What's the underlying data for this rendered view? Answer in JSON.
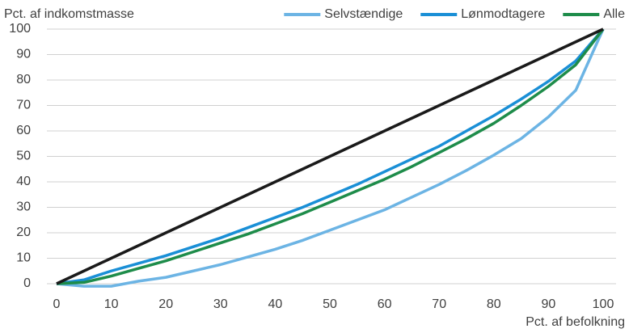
{
  "chart_data": {
    "type": "line",
    "y_label": "Pct. af indkomstmasse",
    "x_label": "Pct. af befolkning",
    "x": [
      0,
      5,
      10,
      15,
      20,
      25,
      30,
      35,
      40,
      45,
      50,
      55,
      60,
      65,
      70,
      75,
      80,
      85,
      90,
      95,
      100
    ],
    "series": [
      {
        "name": "Selvstændige",
        "color": "#6cb4e4",
        "values": [
          0,
          -1,
          -1,
          1,
          2.5,
          5,
          7.5,
          10.5,
          13.5,
          17,
          21,
          25,
          29,
          34,
          39,
          44.5,
          50.5,
          57,
          65.5,
          76,
          100
        ]
      },
      {
        "name": "Lønmodtagere",
        "color": "#1a8fd6",
        "values": [
          0,
          1.5,
          5,
          8,
          11,
          14.5,
          18,
          22,
          26,
          30,
          34.5,
          39,
          44,
          49,
          54,
          60,
          66,
          72.5,
          79.5,
          87.5,
          100
        ]
      },
      {
        "name": "Alle",
        "color": "#1e8c4a",
        "values": [
          0,
          0.5,
          3,
          6,
          9,
          12.5,
          16,
          19.5,
          23.5,
          27.5,
          32,
          36.5,
          41,
          46,
          51.5,
          57,
          63,
          70,
          77.5,
          86,
          100
        ]
      },
      {
        "color": "#1a1a1a",
        "values": [
          0,
          5,
          10,
          15,
          20,
          25,
          30,
          35,
          40,
          45,
          50,
          55,
          60,
          65,
          70,
          75,
          80,
          85,
          90,
          95,
          100
        ]
      }
    ],
    "xlim": [
      0,
      100
    ],
    "xticks": [
      0,
      10,
      20,
      30,
      40,
      50,
      60,
      70,
      80,
      90,
      100
    ],
    "ylim": [
      0,
      100
    ],
    "yticks": [
      0,
      10,
      20,
      30,
      40,
      50,
      60,
      70,
      80,
      90,
      100
    ],
    "grid": true,
    "legend": "top-right"
  }
}
